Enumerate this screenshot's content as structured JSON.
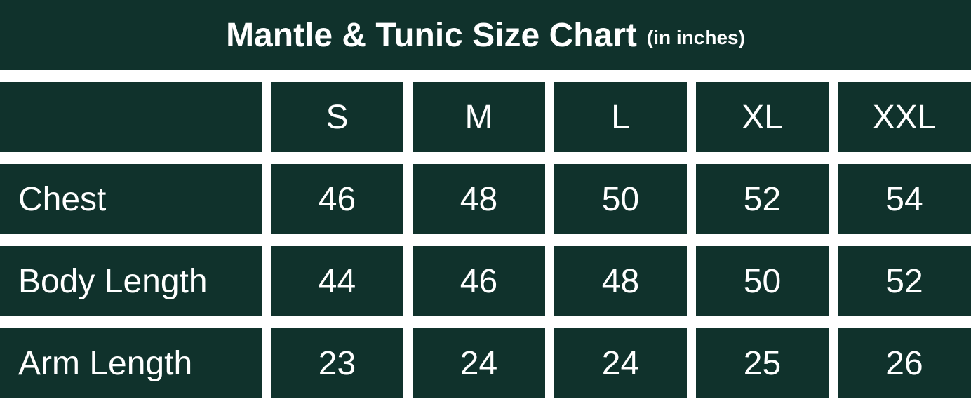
{
  "title": "Mantle & Tunic Size Chart",
  "subtitle": "(in inches)",
  "colors": {
    "cell_background": "#10322c",
    "text": "#ffffff",
    "background": "#ffffff"
  },
  "chart_data": {
    "type": "table",
    "title": "Mantle & Tunic Size Chart",
    "subtitle": "(in inches)",
    "columns": [
      "",
      "S",
      "M",
      "L",
      "XL",
      "XXL"
    ],
    "rows": [
      {
        "label": "Chest",
        "values": [
          "46",
          "48",
          "50",
          "52",
          "54"
        ]
      },
      {
        "label": "Body Length",
        "values": [
          "44",
          "46",
          "48",
          "50",
          "52"
        ]
      },
      {
        "label": "Arm Length",
        "values": [
          "23",
          "24",
          "24",
          "25",
          "26"
        ]
      }
    ]
  }
}
